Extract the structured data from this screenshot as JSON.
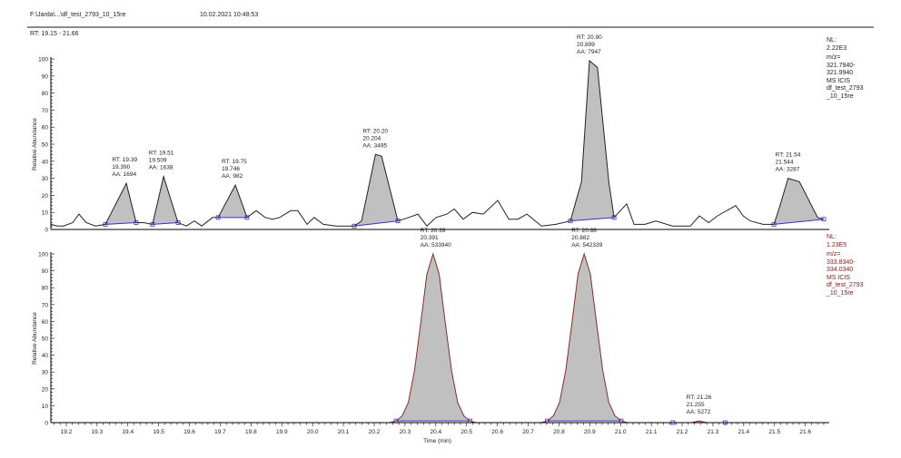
{
  "header": {
    "file_path": "F:\\Jarda\\...\\df_test_2793_10_15re",
    "datetime": "10.02.2021 10:48:53",
    "rt_range": "RT: 19.15 - 21.66"
  },
  "colors": {
    "trace_top": "#222222",
    "trace_bottom": "#8b2a2a",
    "peak_fill": "#c0c0c0",
    "baseline": "#3333cc",
    "info_bottom": "#7a2020"
  },
  "chart_data": [
    {
      "type": "line",
      "title": "",
      "xlabel": "",
      "ylabel": "Relative Abundance",
      "xlim": [
        19.15,
        21.66
      ],
      "ylim": [
        0,
        100
      ],
      "yticks": [
        0,
        10,
        20,
        30,
        40,
        50,
        60,
        70,
        80,
        90,
        100
      ],
      "grid": false,
      "info": [
        "NL:",
        "2.22E3",
        "m/z=",
        "321.7940-",
        "321.9940",
        "MS  ICIS",
        "df_test_2793",
        "_10_15re"
      ],
      "x": [
        19.15,
        19.171,
        19.191,
        19.221,
        19.241,
        19.265,
        19.295,
        19.327,
        19.395,
        19.427,
        19.451,
        19.48,
        19.516,
        19.563,
        19.59,
        19.616,
        19.64,
        19.675,
        19.693,
        19.749,
        19.787,
        19.817,
        19.846,
        19.87,
        19.893,
        19.929,
        19.952,
        19.982,
        20.005,
        20.035,
        20.076,
        20.135,
        20.159,
        20.204,
        20.224,
        20.277,
        20.312,
        20.342,
        20.371,
        20.401,
        20.436,
        20.46,
        20.489,
        20.519,
        20.554,
        20.601,
        20.637,
        20.666,
        20.696,
        20.743,
        20.79,
        20.837,
        20.873,
        20.899,
        20.925,
        20.962,
        20.979,
        21.02,
        21.044,
        21.079,
        21.115,
        21.168,
        21.227,
        21.256,
        21.286,
        21.315,
        21.374,
        21.398,
        21.421,
        21.463,
        21.498,
        21.516,
        21.544,
        21.581,
        21.64,
        21.66
      ],
      "y": [
        3,
        2,
        2,
        4,
        9,
        4,
        2,
        3,
        27,
        4,
        4,
        3,
        31,
        4,
        2,
        5,
        2,
        7,
        7,
        26,
        7,
        11,
        7,
        6,
        7,
        11,
        11,
        3,
        7,
        3,
        2,
        2,
        5,
        44,
        43,
        5,
        7,
        9,
        2,
        7,
        9,
        12,
        6,
        10,
        9,
        17,
        6,
        6,
        9,
        2,
        3,
        5,
        28,
        99,
        95,
        28,
        7,
        15,
        3,
        3,
        5,
        2,
        2,
        8,
        4,
        8,
        14,
        8,
        5,
        3,
        3,
        13,
        30,
        28,
        7,
        6
      ],
      "peaks": [
        {
          "rt": "RT: 19.39",
          "apex": "19.390",
          "aa": "AA: 1694",
          "height": 27,
          "start": 19.327,
          "end": 19.427
        },
        {
          "rt": "RT: 19.51",
          "apex": "19.509",
          "aa": "AA: 1638",
          "height": 31,
          "start": 19.48,
          "end": 19.563
        },
        {
          "rt": "RT: 19.75",
          "apex": "19.746",
          "aa": "AA: 982",
          "height": 26,
          "start": 19.693,
          "end": 19.787
        },
        {
          "rt": "RT: 20.20",
          "apex": "20.204",
          "aa": "AA: 3495",
          "height": 44,
          "start": 20.135,
          "end": 20.277
        },
        {
          "rt": "RT: 20.90",
          "apex": "20.899",
          "aa": "AA: 7947",
          "height": 99,
          "start": 20.837,
          "end": 20.979
        },
        {
          "rt": "RT: 21.54",
          "apex": "21.544",
          "aa": "AA: 3287",
          "height": 30,
          "start": 21.498,
          "end": 21.66
        }
      ]
    },
    {
      "type": "line",
      "title": "",
      "xlabel": "Time (min)",
      "ylabel": "Relative Abundance",
      "xlim": [
        19.15,
        21.66
      ],
      "ylim": [
        0,
        100
      ],
      "xticks": [
        19.2,
        19.3,
        19.4,
        19.5,
        19.6,
        19.7,
        19.8,
        19.9,
        20.0,
        20.1,
        20.2,
        20.3,
        20.4,
        20.5,
        20.6,
        20.7,
        20.8,
        20.9,
        21.0,
        21.1,
        21.2,
        21.3,
        21.4,
        21.5,
        21.6
      ],
      "yticks": [
        0,
        10,
        20,
        30,
        40,
        50,
        60,
        70,
        80,
        90,
        100
      ],
      "grid": false,
      "info": [
        "NL:",
        "1.23E5",
        "m/z=",
        "333.8340-",
        "334.0340",
        "MS  ICIS",
        "df_test_2793",
        "_10_15re"
      ],
      "x": [
        19.15,
        20.25,
        20.271,
        20.291,
        20.311,
        20.331,
        20.351,
        20.371,
        20.391,
        20.411,
        20.431,
        20.451,
        20.471,
        20.491,
        20.511,
        20.531,
        20.742,
        20.762,
        20.782,
        20.802,
        20.822,
        20.842,
        20.862,
        20.882,
        20.902,
        20.922,
        20.942,
        20.962,
        20.982,
        21.002,
        21.022,
        21.23,
        21.255,
        21.28,
        21.66
      ],
      "y": [
        0,
        0,
        1,
        4,
        12,
        31,
        59,
        88,
        100,
        88,
        59,
        31,
        12,
        4,
        1,
        0,
        0,
        1,
        4,
        12,
        31,
        59,
        88,
        100,
        88,
        59,
        31,
        12,
        4,
        1,
        0,
        0,
        1,
        0,
        0
      ],
      "peaks": [
        {
          "rt": "RT: 20.39",
          "apex": "20.391",
          "aa": "AA: 533940",
          "height": 100,
          "start": 20.271,
          "end": 20.511
        },
        {
          "rt": "RT: 20.88",
          "apex": "20.882",
          "aa": "AA: 542339",
          "height": 100,
          "start": 20.762,
          "end": 21.002
        },
        {
          "rt": "RT: 21.26",
          "apex": "21.255",
          "aa": "AA: 5272",
          "height": 1,
          "start": 21.17,
          "end": 21.34
        }
      ]
    }
  ]
}
